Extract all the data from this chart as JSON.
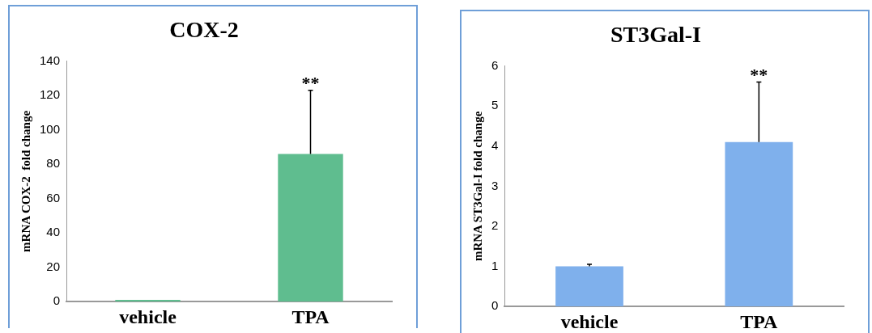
{
  "chart_data": [
    {
      "type": "bar",
      "title": "COX-2",
      "ylabel": "mRNA COX-2  fold change",
      "categories": [
        "vehicle",
        "TPA"
      ],
      "values": [
        1,
        86
      ],
      "color": "#5fbd8f",
      "errors": [
        null,
        [
          86,
          123
        ]
      ],
      "ylim": [
        0,
        140
      ],
      "yticks": [
        0,
        20,
        40,
        60,
        80,
        100,
        120,
        140
      ],
      "grid": false,
      "legend": false,
      "annotations": [
        {
          "text": "**",
          "x": "TPA",
          "y": 123
        }
      ]
    },
    {
      "type": "bar",
      "title": "ST3Gal-I",
      "ylabel": "mRNA ST3Gal-I fold change",
      "categories": [
        "vehicle",
        "TPA"
      ],
      "values": [
        1,
        4.1
      ],
      "color": "#7fb0ec",
      "errors": [
        [
          1,
          1.05
        ],
        [
          4.1,
          5.6
        ]
      ],
      "ylim": [
        0,
        6
      ],
      "yticks": [
        0,
        1,
        2,
        3,
        4,
        5,
        6
      ],
      "grid": false,
      "legend": false,
      "annotations": [
        {
          "text": "**",
          "x": "TPA",
          "y": 5.6
        }
      ]
    }
  ]
}
